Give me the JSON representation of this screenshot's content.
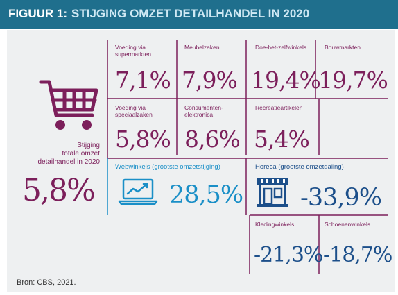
{
  "header": {
    "figure_label": "FIGUUR 1:",
    "title": "STIJGING OMZET DETAILHANDEL IN 2020"
  },
  "total": {
    "label_line1": "Stijging",
    "label_line2": "totale omzet",
    "label_line3": "detailhandel in 2020",
    "value": "5,8%"
  },
  "cells": {
    "voeding_super": {
      "label_line1": "Voeding via",
      "label_line2": "supermarkten",
      "value": "7,1%"
    },
    "meubelzaken": {
      "label_line1": "Meubelzaken",
      "label_line2": "",
      "value": "7,9%"
    },
    "doe_het_zelf": {
      "label_line1": "Doe-het-zelfwinkels",
      "label_line2": "",
      "value": "19,4%"
    },
    "bouwmarkten": {
      "label_line1": "Bouwmarkten",
      "label_line2": "",
      "value": "19,7%"
    },
    "voeding_speciaal": {
      "label_line1": "Voeding via",
      "label_line2": "speciaalzaken",
      "value": "5,8%"
    },
    "consumentenelektronica": {
      "label_line1": "Consumenten-",
      "label_line2": "elektronica",
      "value": "8,6%"
    },
    "recreatieartikelen": {
      "label_line1": "Recreatieartikelen",
      "label_line2": "",
      "value": "5,4%"
    },
    "webwinkels": {
      "label_line1": "Webwinkels (grootste omzetstijging)",
      "label_line2": "",
      "value": "28,5%"
    },
    "horeca": {
      "label_line1": "Horeca (grootste omzetdaling)",
      "label_line2": "",
      "value": "-33,9%"
    },
    "kledingwinkels": {
      "label_line1": "Kledingwinkels",
      "label_line2": "",
      "value": "-21,3%"
    },
    "schoenenwinkels": {
      "label_line1": "Schoenenwinkels",
      "label_line2": "",
      "value": "-18,7%"
    }
  },
  "source": "Bron: CBS, 2021.",
  "colors": {
    "header_bg": "#1f6f8d",
    "panel_bg": "#eef0f1",
    "purple": "#7c1f5b",
    "teal": "#1a8fc7",
    "navy": "#1c4f8a"
  },
  "icons": {
    "total": "shopping-cart-icon",
    "webwinkels": "laptop-chart-icon",
    "horeca": "storefront-icon"
  },
  "chart_data": {
    "type": "table",
    "title": "STIJGING OMZET DETAILHANDEL IN 2020",
    "unit": "%",
    "categories": [
      "Stijging totale omzet detailhandel in 2020",
      "Voeding via supermarkten",
      "Meubelzaken",
      "Doe-het-zelfwinkels",
      "Bouwmarkten",
      "Voeding via speciaalzaken",
      "Consumentenelektronica",
      "Recreatieartikelen",
      "Webwinkels (grootste omzetstijging)",
      "Horeca (grootste omzetdaling)",
      "Kledingwinkels",
      "Schoenenwinkels"
    ],
    "values": [
      5.8,
      7.1,
      7.9,
      19.4,
      19.7,
      5.8,
      8.6,
      5.4,
      28.5,
      -33.9,
      -21.3,
      -18.7
    ]
  }
}
